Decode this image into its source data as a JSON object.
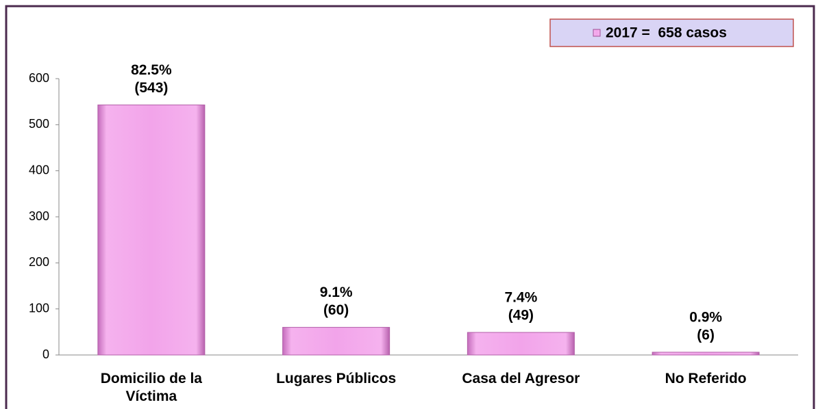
{
  "chart_data": {
    "type": "bar",
    "categories": [
      "Domicilio de la Víctima",
      "Lugares Públicos",
      "Casa del Agresor",
      "No Referido"
    ],
    "series": [
      {
        "name": "2017 =  658 casos",
        "color": "#f2a4ea",
        "values": [
          543,
          60,
          49,
          6
        ],
        "value_labels": [
          "(543)",
          "(60)",
          "(49)",
          "(6)"
        ],
        "percent_labels": [
          "82.5%",
          "9.1%",
          "7.4%",
          "0.9%"
        ]
      }
    ],
    "ylim": [
      0,
      600
    ],
    "yticks": [
      0,
      100,
      200,
      300,
      400,
      500,
      600
    ],
    "grid": false,
    "legend": "top-right"
  }
}
